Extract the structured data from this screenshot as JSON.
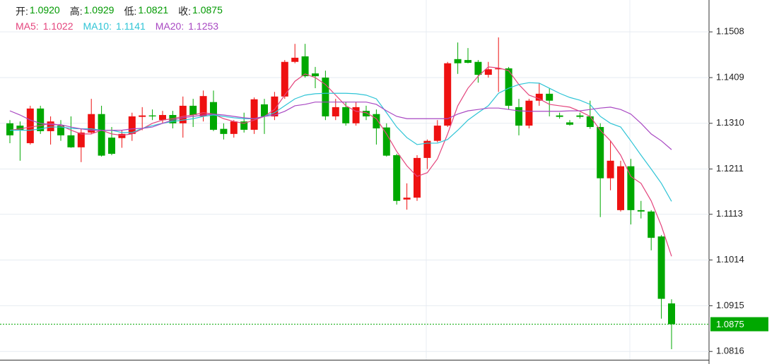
{
  "chart_data": {
    "type": "candlestick",
    "ohlc_header": [
      {
        "label": "开:",
        "value": "1.0920"
      },
      {
        "label": "高:",
        "value": "1.0929"
      },
      {
        "label": "低:",
        "value": "1.0821"
      },
      {
        "label": "收:",
        "value": "1.0875"
      }
    ],
    "header_value_color": "#009900",
    "up_color": "#ee1111",
    "down_color": "#00a800",
    "open": [
      1.131,
      1.1305,
      1.1267,
      1.1342,
      1.1293,
      1.1305,
      1.1284,
      1.1258,
      1.129,
      1.133,
      1.1279,
      1.1278,
      1.1287,
      1.1324,
      1.1327,
      1.1317,
      1.1328,
      1.131,
      1.1348,
      1.1325,
      1.1356,
      1.1298,
      1.1287,
      1.1314,
      1.1296,
      1.1351,
      1.1325,
      1.1368,
      1.1443,
      1.1455,
      1.1418,
      1.1409,
      1.1325,
      1.1345,
      1.131,
      1.1337,
      1.133,
      1.1301,
      1.1241,
      1.1145,
      1.1149,
      1.1235,
      1.1272,
      1.1305,
      1.1449,
      1.1447,
      1.1443,
      1.1415,
      1.1427,
      1.1429,
      1.1345,
      1.1305,
      1.1359,
      1.1374,
      1.1327,
      1.1312,
      1.1327,
      1.1325,
      1.1302,
      1.1191,
      1.1122,
      1.1217,
      1.1122,
      1.1119,
      1.1065,
      1.092
    ],
    "high": [
      1.1317,
      1.1314,
      1.1348,
      1.1348,
      1.1325,
      1.1317,
      1.1325,
      1.1299,
      1.1363,
      1.1348,
      1.1302,
      1.1295,
      1.1333,
      1.1345,
      1.134,
      1.1337,
      1.1337,
      1.1368,
      1.1363,
      1.1381,
      1.1381,
      1.131,
      1.1317,
      1.1333,
      1.1366,
      1.1363,
      1.1378,
      1.1447,
      1.1482,
      1.1482,
      1.1432,
      1.1424,
      1.1363,
      1.1356,
      1.1356,
      1.1348,
      1.134,
      1.131,
      1.1244,
      1.118,
      1.1241,
      1.1275,
      1.1317,
      1.1443,
      1.1485,
      1.1473,
      1.1447,
      1.1443,
      1.1496,
      1.1432,
      1.1363,
      1.1363,
      1.1397,
      1.1386,
      1.1333,
      1.1317,
      1.1333,
      1.1359,
      1.131,
      1.1272,
      1.1229,
      1.1233,
      1.1142,
      1.1122,
      1.1068,
      1.0929
    ],
    "low": [
      1.1267,
      1.1229,
      1.1264,
      1.1287,
      1.1264,
      1.1272,
      1.1257,
      1.1226,
      1.1287,
      1.1238,
      1.1241,
      1.1257,
      1.1272,
      1.1295,
      1.1317,
      1.131,
      1.1299,
      1.1279,
      1.1302,
      1.1314,
      1.1293,
      1.1275,
      1.1279,
      1.129,
      1.1287,
      1.1287,
      1.1317,
      1.1363,
      1.144,
      1.1409,
      1.1386,
      1.1317,
      1.1317,
      1.1305,
      1.1305,
      1.1317,
      1.1264,
      1.1238,
      1.1134,
      1.1123,
      1.1142,
      1.1211,
      1.1269,
      1.1302,
      1.1417,
      1.144,
      1.1398,
      1.1409,
      1.1378,
      1.134,
      1.1284,
      1.1299,
      1.1348,
      1.1325,
      1.132,
      1.1305,
      1.132,
      1.1298,
      1.1107,
      1.1165,
      1.1119,
      1.1091,
      1.1104,
      1.1035,
      1.0887,
      1.0821
    ],
    "close": [
      1.1284,
      1.1296,
      1.1342,
      1.1293,
      1.1314,
      1.1284,
      1.1258,
      1.129,
      1.133,
      1.124,
      1.1244,
      1.1287,
      1.1325,
      1.1327,
      1.1325,
      1.1328,
      1.131,
      1.1348,
      1.1328,
      1.1369,
      1.1296,
      1.1287,
      1.1314,
      1.1296,
      1.1362,
      1.1325,
      1.1368,
      1.1443,
      1.1452,
      1.1412,
      1.1412,
      1.1325,
      1.1345,
      1.131,
      1.1345,
      1.1325,
      1.1299,
      1.124,
      1.1142,
      1.1149,
      1.1235,
      1.1272,
      1.1305,
      1.144,
      1.144,
      1.1441,
      1.1415,
      1.1427,
      1.1429,
      1.1348,
      1.1305,
      1.1359,
      1.1374,
      1.1359,
      1.1324,
      1.1307,
      1.1324,
      1.1302,
      1.1191,
      1.1229,
      1.1217,
      1.1122,
      1.1119,
      1.1062,
      1.093,
      1.0875
    ],
    "series": [
      {
        "name": "MA5:",
        "value_label": "1.1022",
        "color": "#e4457d",
        "values": [
          1.1295,
          1.1298,
          1.1302,
          1.1305,
          1.131,
          1.1305,
          1.1295,
          1.1287,
          1.1287,
          1.1295,
          1.1287,
          1.1284,
          1.1287,
          1.1298,
          1.131,
          1.1317,
          1.132,
          1.1325,
          1.1328,
          1.1333,
          1.133,
          1.132,
          1.1314,
          1.131,
          1.1317,
          1.1325,
          1.134,
          1.1371,
          1.1401,
          1.1417,
          1.1409,
          1.1394,
          1.1371,
          1.1348,
          1.1336,
          1.1333,
          1.132,
          1.1287,
          1.1249,
          1.1218,
          1.1195,
          1.1203,
          1.1233,
          1.1287,
          1.1348,
          1.1386,
          1.1412,
          1.1432,
          1.143,
          1.1424,
          1.1394,
          1.1371,
          1.1363,
          1.1351,
          1.1348,
          1.1345,
          1.1336,
          1.1325,
          1.1295,
          1.1272,
          1.1241,
          1.1195,
          1.118,
          1.1142,
          1.1088,
          1.1022
        ]
      },
      {
        "name": "MA10:",
        "value_label": "1.1141",
        "color": "#2ec4d6",
        "values": [
          1.1295,
          1.1295,
          1.1295,
          1.1298,
          1.1302,
          1.1302,
          1.1299,
          1.1298,
          1.1298,
          1.1295,
          1.1295,
          1.129,
          1.129,
          1.1299,
          1.1305,
          1.131,
          1.1314,
          1.1317,
          1.132,
          1.1325,
          1.1328,
          1.1325,
          1.1322,
          1.132,
          1.132,
          1.1325,
          1.1333,
          1.1348,
          1.1363,
          1.1371,
          1.1374,
          1.1375,
          1.1375,
          1.1375,
          1.1374,
          1.1371,
          1.1363,
          1.1333,
          1.1302,
          1.1279,
          1.1264,
          1.1267,
          1.1267,
          1.1275,
          1.1295,
          1.1317,
          1.1333,
          1.1348,
          1.1375,
          1.1386,
          1.1394,
          1.1398,
          1.1397,
          1.1386,
          1.1375,
          1.1366,
          1.136,
          1.1351,
          1.1325,
          1.131,
          1.1302,
          1.1272,
          1.1241,
          1.1211,
          1.118,
          1.1141
        ]
      },
      {
        "name": "MA20:",
        "value_label": "1.1253",
        "color": "#a847c2",
        "values": [
          1.1337,
          1.1328,
          1.1317,
          1.131,
          1.1307,
          1.1307,
          1.1302,
          1.1298,
          1.1295,
          1.1295,
          1.1295,
          1.1295,
          1.1298,
          1.1299,
          1.1302,
          1.131,
          1.1317,
          1.1322,
          1.1325,
          1.1328,
          1.133,
          1.1328,
          1.1325,
          1.1322,
          1.132,
          1.1325,
          1.1328,
          1.1336,
          1.1348,
          1.1351,
          1.1356,
          1.1356,
          1.1356,
          1.1356,
          1.1356,
          1.1356,
          1.1351,
          1.1337,
          1.1325,
          1.132,
          1.132,
          1.132,
          1.132,
          1.132,
          1.133,
          1.1337,
          1.134,
          1.1343,
          1.1343,
          1.134,
          1.1337,
          1.1336,
          1.1336,
          1.1336,
          1.1336,
          1.1337,
          1.1337,
          1.134,
          1.1343,
          1.1345,
          1.134,
          1.133,
          1.131,
          1.1287,
          1.1272,
          1.1253
        ]
      }
    ],
    "ylim": [
      1.0798,
      1.1577
    ],
    "yticks": [
      1.1508,
      1.1409,
      {
        "value": 1.131,
        "label": "1.1310"
      },
      1.1211,
      1.1113,
      1.1014,
      1.0915,
      1.0816
    ],
    "grid": true,
    "last_price": 1.0875,
    "last_price_color": "#00a800"
  }
}
